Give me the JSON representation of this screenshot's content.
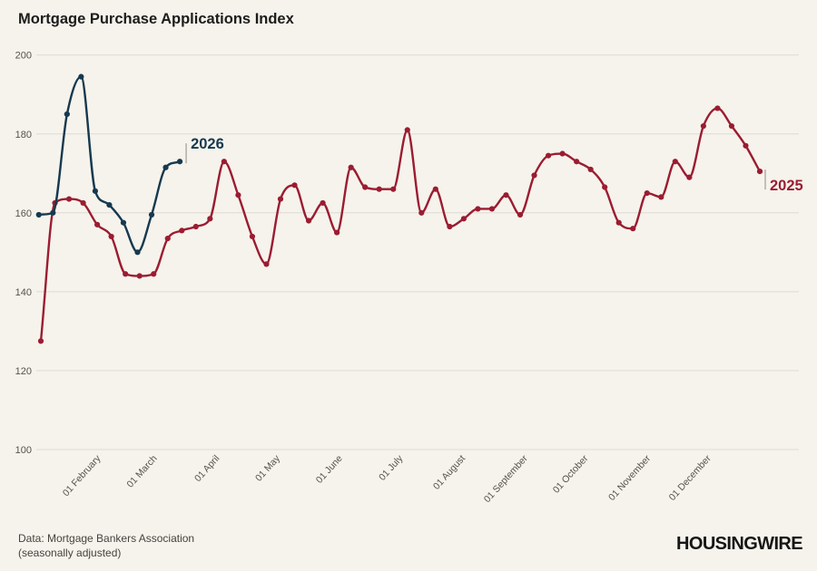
{
  "page": {
    "title": "Mortgage Purchase Applications Index",
    "source_line1": "Data: Mortgage Bankers Association",
    "source_line2": "(seasonally adjusted)",
    "logo": "HOUSINGWIRE"
  },
  "colors": {
    "background": "#f5f3ec",
    "grid": "#dedbd3",
    "axis_text": "#55524b",
    "title_text": "#1d1c1a",
    "leader_line": "#b0aea7",
    "series_2025": "#9b1c31",
    "series_2026": "#16394f"
  },
  "chart_data": {
    "type": "line",
    "title": "Mortgage Purchase Applications Index",
    "xlabel": "",
    "ylabel": "",
    "ylim": [
      100,
      200
    ],
    "yticks": [
      100,
      120,
      140,
      160,
      180,
      200
    ],
    "grid": "horizontal",
    "legend_position": "line-end-labels",
    "x_axis_note": "weekly data plotted on day-of-year axis",
    "xticks": [
      {
        "label": "01 February",
        "day": 31
      },
      {
        "label": "01 March",
        "day": 59
      },
      {
        "label": "01 April",
        "day": 90
      },
      {
        "label": "01 May",
        "day": 120
      },
      {
        "label": "01 June",
        "day": 151
      },
      {
        "label": "01 July",
        "day": 181
      },
      {
        "label": "01 August",
        "day": 212
      },
      {
        "label": "01 September",
        "day": 243
      },
      {
        "label": "01 October",
        "day": 273
      },
      {
        "label": "01 November",
        "day": 304
      },
      {
        "label": "01 December",
        "day": 334
      }
    ],
    "series": [
      {
        "name": "2025",
        "color": "#9b1c31",
        "start_day": 2,
        "interval_days": 7,
        "values": [
          127.5,
          162.5,
          163.5,
          162.5,
          157,
          154,
          144.5,
          144,
          144.5,
          153.5,
          155.5,
          156.5,
          158.5,
          173,
          164.5,
          154,
          147,
          163.5,
          167,
          158,
          162.5,
          155,
          171.5,
          166.5,
          166,
          166,
          181,
          160,
          166,
          156.5,
          158.5,
          161,
          161,
          164.5,
          159.5,
          169.5,
          174.5,
          175,
          173,
          171,
          166.5,
          157.5,
          156,
          165,
          164,
          173,
          169,
          182,
          186.5,
          182,
          177,
          170.5
        ]
      },
      {
        "name": "2026",
        "color": "#16394f",
        "start_day": 1,
        "interval_days": 7,
        "values": [
          159.5,
          160,
          185,
          194.5,
          165.5,
          162,
          157.5,
          150,
          159.5,
          171.5,
          173
        ]
      }
    ]
  }
}
